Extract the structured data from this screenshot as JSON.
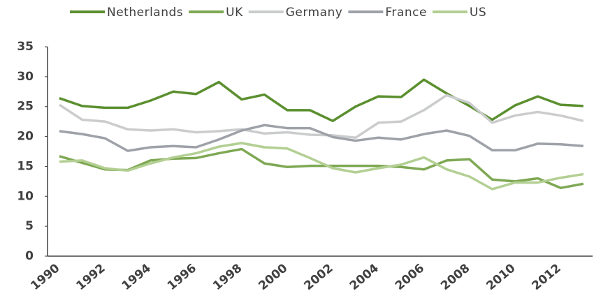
{
  "chart_data": {
    "type": "line",
    "categories": [
      "1990",
      null,
      "1992",
      null,
      "1994",
      null,
      "1996",
      null,
      "1998",
      null,
      "2000",
      null,
      "2002",
      null,
      "2004",
      null,
      "2006",
      null,
      "2008",
      null,
      "2010",
      null,
      "2012",
      null
    ],
    "series": [
      {
        "name": "Netherlands",
        "color": "#5b8f2f",
        "values": [
          26.4,
          25.1,
          24.8,
          24.8,
          26.0,
          27.5,
          27.1,
          29.1,
          26.2,
          27.0,
          24.4,
          24.4,
          22.6,
          25.0,
          26.7,
          26.6,
          29.5,
          27.2,
          25.1,
          22.8,
          25.2,
          26.7,
          25.3,
          25.1
        ]
      },
      {
        "name": "UK",
        "color": "#7ea853",
        "values": [
          16.7,
          15.6,
          14.5,
          14.4,
          16.0,
          16.3,
          16.4,
          17.2,
          17.9,
          15.5,
          14.9,
          15.1,
          15.1,
          15.1,
          15.1,
          14.9,
          14.5,
          16.0,
          16.2,
          12.8,
          12.5,
          13.0,
          11.4,
          12.1
        ]
      },
      {
        "name": "Germany",
        "color": "#cbcccd",
        "values": [
          25.3,
          22.8,
          22.5,
          21.2,
          21.0,
          21.2,
          20.7,
          20.9,
          21.2,
          20.5,
          20.7,
          20.3,
          20.2,
          19.8,
          22.3,
          22.5,
          24.4,
          26.9,
          25.6,
          22.3,
          23.5,
          24.1,
          23.5,
          22.6
        ]
      },
      {
        "name": "France",
        "color": "#9ea2a8",
        "values": [
          20.9,
          20.4,
          19.7,
          17.6,
          18.2,
          18.4,
          18.2,
          19.5,
          21.0,
          21.9,
          21.4,
          21.4,
          19.9,
          19.3,
          19.8,
          19.5,
          20.4,
          21.0,
          20.1,
          17.7,
          17.7,
          18.8,
          18.7,
          18.4
        ]
      },
      {
        "name": "US",
        "color": "#b3cf93",
        "values": [
          15.8,
          16.0,
          14.7,
          14.3,
          15.5,
          16.5,
          17.2,
          18.3,
          18.9,
          18.2,
          18.0,
          16.4,
          14.7,
          14.0,
          14.7,
          15.3,
          16.5,
          14.5,
          13.3,
          11.2,
          12.3,
          12.3,
          13.1,
          13.7
        ]
      }
    ],
    "ylim": [
      0,
      35
    ],
    "yticks": [
      0,
      5,
      10,
      15,
      20,
      25,
      30,
      35
    ],
    "legend": "top",
    "grid": false
  }
}
